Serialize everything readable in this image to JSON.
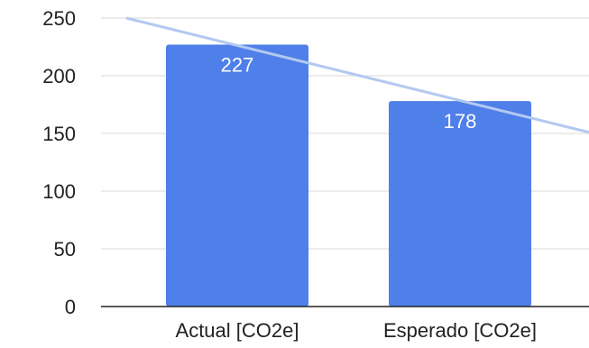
{
  "chart_data": {
    "type": "bar",
    "categories": [
      "Actual [CO2e]",
      "Esperado [CO2e]"
    ],
    "values": [
      227,
      178
    ],
    "data_labels": [
      "227",
      "178"
    ],
    "yticks": [
      0,
      50,
      100,
      150,
      200,
      250
    ],
    "ytick_labels": [
      "0",
      "50",
      "100",
      "150",
      "200",
      "250"
    ],
    "ylim": [
      0,
      250
    ],
    "grid": true,
    "legend": "none",
    "trend_line": {
      "start_value": 250,
      "end_value": 151
    },
    "colors": {
      "bar": "#4f7fe8",
      "trend": "#b3c9f2",
      "grid": "#d9d9d9",
      "axis": "#222222"
    }
  }
}
